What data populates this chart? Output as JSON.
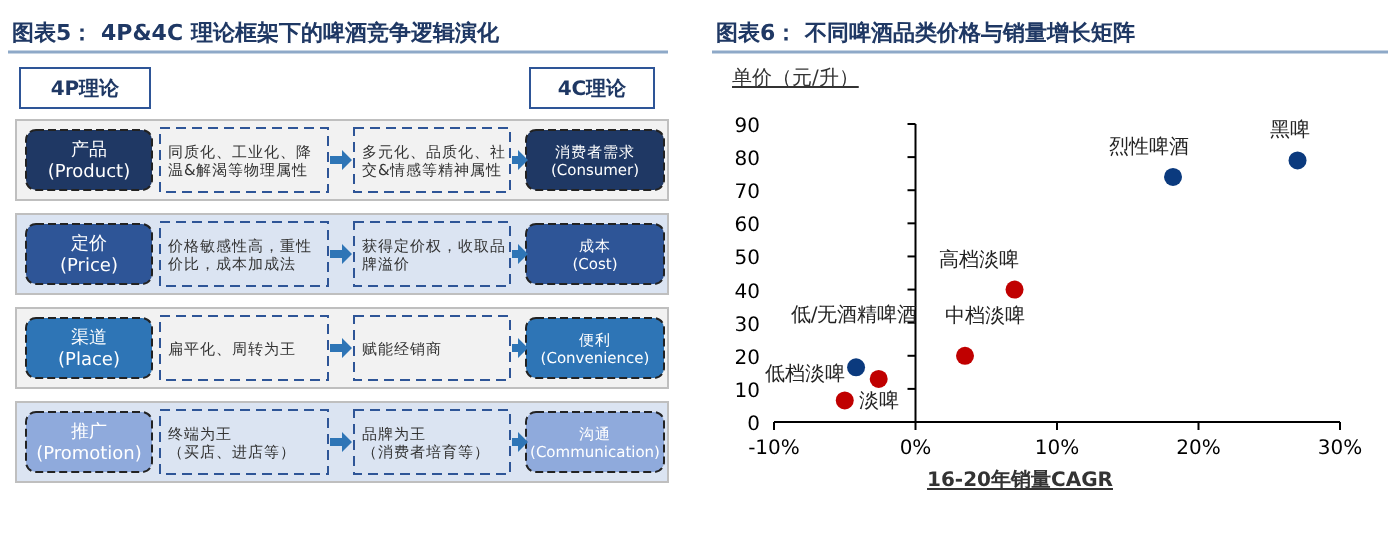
{
  "chart_data": [
    {
      "type": "other",
      "title": "图表5：  4P&4C 理论框架下的啤酒竞争逻辑演化",
      "annotations": [
        "4P理论",
        "4C理论",
        "产品\n(Product)",
        "同质化、工业化、降温&解渴等物理属性",
        "多元化、品质化、社交&情感等精神属性",
        "消费者需求\n(Consumer)",
        "定价\n(Price)",
        "价格敏感性高，重性价比，成本加成法",
        "获得定价权，收取品牌溢价",
        "成本\n(Cost)",
        "渠道\n(Place)",
        "扁平化、周转为王",
        "赋能经销商",
        "便利\n(Convenience)",
        "推广\n(Promotion)",
        "终端为王（买店、进店等）",
        "品牌为王（消费者培育等）",
        "沟通\n(Communication)"
      ]
    },
    {
      "type": "scatter",
      "title": "图表6：  不同啤酒品类价格与销量增长矩阵",
      "xlabel": "16-20年销量CAGR",
      "ylabel": "单价（元/升）",
      "x": [
        27,
        18.2,
        7,
        3.5,
        -4.2,
        -2.6,
        -5
      ],
      "values": [
        79,
        74,
        40,
        20,
        16.5,
        13,
        6.5
      ],
      "colors": [
        "#0b3a7e",
        "#0b3a7e",
        "#c00000",
        "#c00000",
        "#0b3a7e",
        "#c00000",
        "#c00000"
      ],
      "annotations": [
        {
          "text": "黑啤",
          "x": 27,
          "y": 79
        },
        {
          "text": "烈性啤酒",
          "x": 18.2,
          "y": 74
        },
        {
          "text": "高档淡啤",
          "x": 7,
          "y": 40
        },
        {
          "text": "中档淡啤",
          "x": 3.5,
          "y": 20
        },
        {
          "text": "低/无酒精啤酒",
          "x": -4.2,
          "y": 16.5
        },
        {
          "text": "淡啤",
          "x": -2.6,
          "y": 13
        },
        {
          "text": "低档淡啤",
          "x": -5,
          "y": 6.5
        }
      ],
      "xlim": [
        -10,
        30
      ],
      "xticks": [
        {
          "value": -10,
          "label": "-10%"
        },
        {
          "value": 0,
          "label": "0%"
        },
        {
          "value": 10,
          "label": "10%"
        },
        {
          "value": 20,
          "label": "20%"
        },
        {
          "value": 30,
          "label": "30%"
        }
      ],
      "ylim": [
        0,
        90
      ],
      "yticks": [
        0,
        10,
        20,
        30,
        40,
        50,
        60,
        70,
        80,
        90
      ],
      "marker": "circle"
    }
  ]
}
